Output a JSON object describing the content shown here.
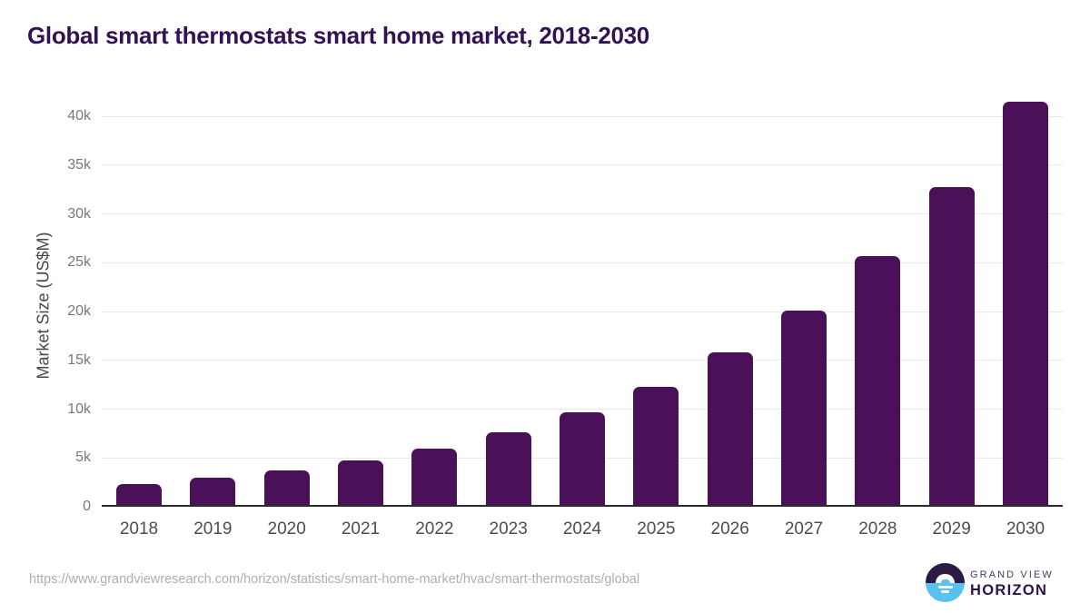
{
  "chart_data": {
    "type": "bar",
    "title": "Global smart thermostats smart home market, 2018-2030",
    "categories": [
      "2018",
      "2019",
      "2020",
      "2021",
      "2022",
      "2023",
      "2024",
      "2025",
      "2026",
      "2027",
      "2028",
      "2029",
      "2030"
    ],
    "values": [
      2300,
      3000,
      3700,
      4700,
      6000,
      7600,
      9700,
      12300,
      15800,
      20100,
      25700,
      32700,
      41500
    ],
    "xlabel": "",
    "ylabel": "Market Size (US$M)",
    "ylim": [
      0,
      43000
    ],
    "yticks": [
      0,
      5000,
      10000,
      15000,
      20000,
      25000,
      30000,
      35000,
      40000
    ],
    "ytick_labels": [
      "0",
      "5k",
      "10k",
      "15k",
      "20k",
      "25k",
      "30k",
      "35k",
      "40k"
    ],
    "grid": true,
    "legend": false,
    "bar_color": "#4a1158"
  },
  "colors": {
    "title": "#321253",
    "bar": "#4a1158",
    "gridline": "#e9e9e9",
    "axis_line": "#2b2b2b",
    "ytick_text": "#787878",
    "xtick_text": "#4d4d4d",
    "source_text": "#aeaeae",
    "logo_purple": "#2c1a45",
    "logo_blue": "#58c1ee"
  },
  "footer": {
    "source_url": "https://www.grandviewresearch.com/horizon/statistics/smart-home-market/hvac/smart-thermostats/global",
    "logo": {
      "line1": "GRAND VIEW",
      "line2": "HORIZON"
    }
  }
}
